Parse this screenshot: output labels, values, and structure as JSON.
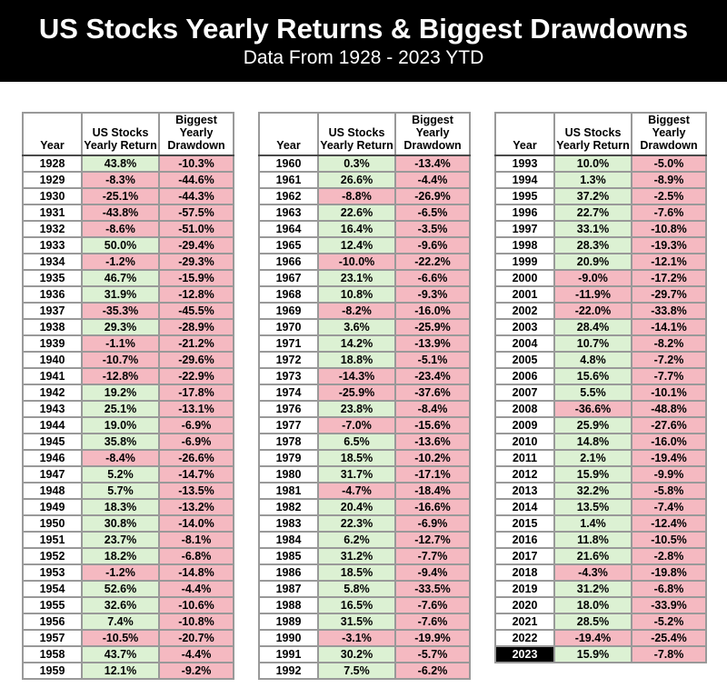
{
  "banner": {
    "title": "US Stocks Yearly Returns & Biggest Drawdowns",
    "subtitle": "Data From 1928 - 2023 YTD"
  },
  "table_headers": {
    "year": "Year",
    "return": "US Stocks Yearly Return",
    "drawdown": "Biggest Yearly Drawdown"
  },
  "highlight_year": 2023,
  "colors": {
    "banner_bg": "#000000",
    "banner_text": "#ffffff",
    "positive_cell_bg": "#dcf1d3",
    "negative_cell_bg": "#f5b9c1",
    "highlight_year_bg": "#000000",
    "highlight_year_text": "#ffffff",
    "grid_border": "#999999"
  },
  "chart_data": {
    "type": "table",
    "title": "US Stocks Yearly Returns & Biggest Drawdowns",
    "subtitle": "Data From 1928 - 2023 YTD",
    "columns": [
      "Year",
      "US Stocks Yearly Return",
      "Biggest Yearly Drawdown"
    ],
    "units": "percent",
    "table_split": [
      32,
      32,
      31
    ],
    "rows": [
      [
        1928,
        43.8,
        -10.3
      ],
      [
        1929,
        -8.3,
        -44.6
      ],
      [
        1930,
        -25.1,
        -44.3
      ],
      [
        1931,
        -43.8,
        -57.5
      ],
      [
        1932,
        -8.6,
        -51.0
      ],
      [
        1933,
        50.0,
        -29.4
      ],
      [
        1934,
        -1.2,
        -29.3
      ],
      [
        1935,
        46.7,
        -15.9
      ],
      [
        1936,
        31.9,
        -12.8
      ],
      [
        1937,
        -35.3,
        -45.5
      ],
      [
        1938,
        29.3,
        -28.9
      ],
      [
        1939,
        -1.1,
        -21.2
      ],
      [
        1940,
        -10.7,
        -29.6
      ],
      [
        1941,
        -12.8,
        -22.9
      ],
      [
        1942,
        19.2,
        -17.8
      ],
      [
        1943,
        25.1,
        -13.1
      ],
      [
        1944,
        19.0,
        -6.9
      ],
      [
        1945,
        35.8,
        -6.9
      ],
      [
        1946,
        -8.4,
        -26.6
      ],
      [
        1947,
        5.2,
        -14.7
      ],
      [
        1948,
        5.7,
        -13.5
      ],
      [
        1949,
        18.3,
        -13.2
      ],
      [
        1950,
        30.8,
        -14.0
      ],
      [
        1951,
        23.7,
        -8.1
      ],
      [
        1952,
        18.2,
        -6.8
      ],
      [
        1953,
        -1.2,
        -14.8
      ],
      [
        1954,
        52.6,
        -4.4
      ],
      [
        1955,
        32.6,
        -10.6
      ],
      [
        1956,
        7.4,
        -10.8
      ],
      [
        1957,
        -10.5,
        -20.7
      ],
      [
        1958,
        43.7,
        -4.4
      ],
      [
        1959,
        12.1,
        -9.2
      ],
      [
        1960,
        0.3,
        -13.4
      ],
      [
        1961,
        26.6,
        -4.4
      ],
      [
        1962,
        -8.8,
        -26.9
      ],
      [
        1963,
        22.6,
        -6.5
      ],
      [
        1964,
        16.4,
        -3.5
      ],
      [
        1965,
        12.4,
        -9.6
      ],
      [
        1966,
        -10.0,
        -22.2
      ],
      [
        1967,
        23.1,
        -6.6
      ],
      [
        1968,
        10.8,
        -9.3
      ],
      [
        1969,
        -8.2,
        -16.0
      ],
      [
        1970,
        3.6,
        -25.9
      ],
      [
        1971,
        14.2,
        -13.9
      ],
      [
        1972,
        18.8,
        -5.1
      ],
      [
        1973,
        -14.3,
        -23.4
      ],
      [
        1974,
        -25.9,
        -37.6
      ],
      [
        1976,
        23.8,
        -8.4
      ],
      [
        1977,
        -7.0,
        -15.6
      ],
      [
        1978,
        6.5,
        -13.6
      ],
      [
        1979,
        18.5,
        -10.2
      ],
      [
        1980,
        31.7,
        -17.1
      ],
      [
        1981,
        -4.7,
        -18.4
      ],
      [
        1982,
        20.4,
        -16.6
      ],
      [
        1983,
        22.3,
        -6.9
      ],
      [
        1984,
        6.2,
        -12.7
      ],
      [
        1985,
        31.2,
        -7.7
      ],
      [
        1986,
        18.5,
        -9.4
      ],
      [
        1987,
        5.8,
        -33.5
      ],
      [
        1988,
        16.5,
        -7.6
      ],
      [
        1989,
        31.5,
        -7.6
      ],
      [
        1990,
        -3.1,
        -19.9
      ],
      [
        1991,
        30.2,
        -5.7
      ],
      [
        1992,
        7.5,
        -6.2
      ],
      [
        1993,
        10.0,
        -5.0
      ],
      [
        1994,
        1.3,
        -8.9
      ],
      [
        1995,
        37.2,
        -2.5
      ],
      [
        1996,
        22.7,
        -7.6
      ],
      [
        1997,
        33.1,
        -10.8
      ],
      [
        1998,
        28.3,
        -19.3
      ],
      [
        1999,
        20.9,
        -12.1
      ],
      [
        2000,
        -9.0,
        -17.2
      ],
      [
        2001,
        -11.9,
        -29.7
      ],
      [
        2002,
        -22.0,
        -33.8
      ],
      [
        2003,
        28.4,
        -14.1
      ],
      [
        2004,
        10.7,
        -8.2
      ],
      [
        2005,
        4.8,
        -7.2
      ],
      [
        2006,
        15.6,
        -7.7
      ],
      [
        2007,
        5.5,
        -10.1
      ],
      [
        2008,
        -36.6,
        -48.8
      ],
      [
        2009,
        25.9,
        -27.6
      ],
      [
        2010,
        14.8,
        -16.0
      ],
      [
        2011,
        2.1,
        -19.4
      ],
      [
        2012,
        15.9,
        -9.9
      ],
      [
        2013,
        32.2,
        -5.8
      ],
      [
        2014,
        13.5,
        -7.4
      ],
      [
        2015,
        1.4,
        -12.4
      ],
      [
        2016,
        11.8,
        -10.5
      ],
      [
        2017,
        21.6,
        -2.8
      ],
      [
        2018,
        -4.3,
        -19.8
      ],
      [
        2019,
        31.2,
        -6.8
      ],
      [
        2020,
        18.0,
        -33.9
      ],
      [
        2021,
        28.5,
        -5.2
      ],
      [
        2022,
        -19.4,
        -25.4
      ],
      [
        2023,
        15.9,
        -7.8
      ]
    ]
  }
}
